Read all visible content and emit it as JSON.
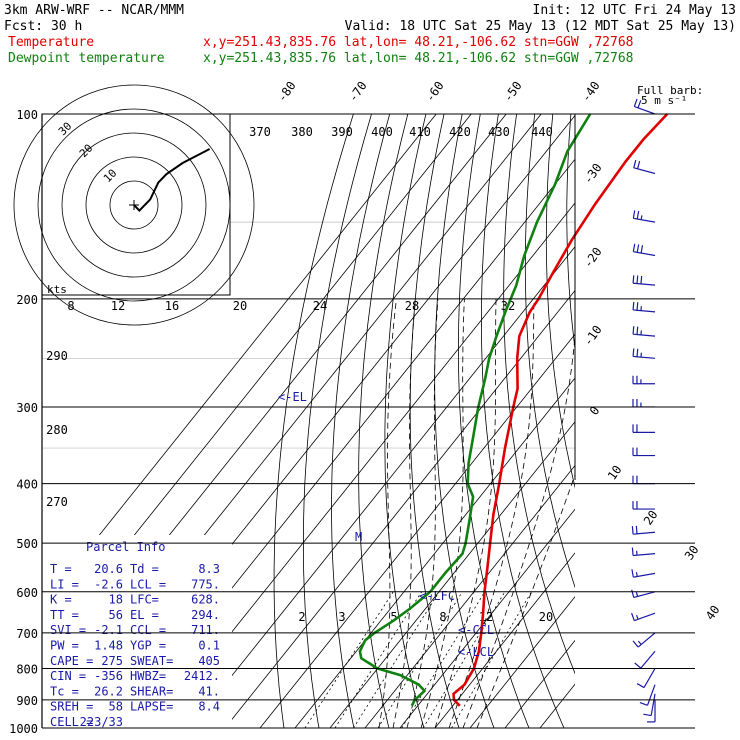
{
  "header": {
    "line1_left": "3km ARW-WRF -- NCAR/MMM",
    "line1_right": "Init: 12 UTC Fri 24 May 13",
    "line2_left": "Fcst:    30 h",
    "line2_right": "Valid: 18 UTC Sat 25 May 13 (12 MDT Sat 25 May 13)",
    "temp_label": "Temperature",
    "temp_loc": "x,y=251.43,835.76   lat,lon= 48.21,-106.62  stn=GGW ,72768",
    "dew_label": "Dewpoint temperature",
    "dew_loc": "x,y=251.43,835.76   lat,lon= 48.21,-106.62  stn=GGW ,72768"
  },
  "wind_legend": {
    "line1": "Full barb:",
    "line2": "5 m s⁻¹"
  },
  "hodograph": {
    "axis_label": "kts",
    "rings": [
      "10",
      "20",
      "30"
    ]
  },
  "annotations": {
    "el": "<-EL",
    "lfc": "<-LFC",
    "ccl": "<-CCL",
    "lcl": "<-LCL",
    "marker": "M"
  },
  "parcel_info": {
    "title": "Parcel Info",
    "rows": [
      [
        "T  =",
        "20.6",
        "Td =",
        "8.3"
      ],
      [
        "LI =",
        "-2.6",
        "LCL =",
        "775."
      ],
      [
        "K  =",
        "18",
        "LFC=",
        "628."
      ],
      [
        "TT =",
        "56",
        "EL =",
        "294."
      ],
      [
        "SVI =",
        "-2.1",
        "CCL =",
        "711."
      ],
      [
        "PW =",
        "1.48",
        "YGP =",
        "0.1"
      ],
      [
        "CAPE =",
        "275",
        "SWEAT=",
        "405"
      ],
      [
        "CIN =",
        "-356",
        "HWBZ=",
        "2412."
      ],
      [
        "Tc =",
        "26.2",
        "SHEAR=",
        "41."
      ],
      [
        "SREH =",
        "58",
        "LAPSE=",
        "8.4"
      ],
      [
        "CELL =",
        "223/33",
        "",
        ""
      ]
    ]
  },
  "colors": {
    "temperature": "#e00000",
    "dewpoint": "#108010",
    "annotation": "#1a1aa8",
    "background": "#ffffff"
  },
  "chart_data": {
    "type": "line",
    "yscale": "log",
    "ylabel": "",
    "xlabel": "",
    "y_ticks": [
      100,
      200,
      300,
      400,
      500,
      600,
      700,
      800,
      900,
      1000
    ],
    "isotherm_labels": [
      -80,
      -70,
      -60,
      -50,
      -40,
      -30,
      -20,
      -10,
      0,
      10,
      20,
      30,
      40
    ],
    "dry_adiabat_labels": [
      370,
      380,
      390,
      400,
      410,
      420,
      430,
      440
    ],
    "moist_adiabat_labels": [
      8,
      12,
      16,
      20,
      24,
      28,
      32
    ],
    "mixing_ratio_labels": [
      2,
      3,
      5,
      8,
      12,
      20
    ],
    "dry_adiabat_left_labels": [
      290,
      280,
      270
    ],
    "series": [
      {
        "name": "Temperature",
        "color": "#e00000",
        "points": [
          [
            920,
            22.0
          ],
          [
            900,
            19.0
          ],
          [
            880,
            17.5
          ],
          [
            850,
            18.5
          ],
          [
            800,
            17.5
          ],
          [
            750,
            15.0
          ],
          [
            700,
            11.5
          ],
          [
            650,
            7.5
          ],
          [
            600,
            3.0
          ],
          [
            550,
            -1.5
          ],
          [
            500,
            -6.5
          ],
          [
            450,
            -12.0
          ],
          [
            400,
            -17.5
          ],
          [
            350,
            -24.0
          ],
          [
            300,
            -31.0
          ],
          [
            280,
            -34.0
          ],
          [
            250,
            -41.0
          ],
          [
            230,
            -45.5
          ],
          [
            210,
            -48.0
          ],
          [
            200,
            -48.5
          ],
          [
            180,
            -50.5
          ],
          [
            160,
            -52.5
          ],
          [
            140,
            -54.0
          ],
          [
            120,
            -55.0
          ],
          [
            110,
            -55.0
          ],
          [
            100,
            -54.0
          ]
        ]
      },
      {
        "name": "Dewpoint temperature",
        "color": "#108010",
        "points": [
          [
            920,
            8.3
          ],
          [
            900,
            7.8
          ],
          [
            870,
            8.5
          ],
          [
            850,
            5.5
          ],
          [
            820,
            -2.0
          ],
          [
            800,
            -10.0
          ],
          [
            770,
            -17.0
          ],
          [
            750,
            -19.0
          ],
          [
            720,
            -20.0
          ],
          [
            700,
            -19.0
          ],
          [
            670,
            -16.5
          ],
          [
            640,
            -14.5
          ],
          [
            600,
            -12.5
          ],
          [
            560,
            -12.5
          ],
          [
            520,
            -12.0
          ],
          [
            500,
            -13.5
          ],
          [
            460,
            -17.5
          ],
          [
            420,
            -22.0
          ],
          [
            400,
            -26.5
          ],
          [
            370,
            -31.0
          ],
          [
            340,
            -35.0
          ],
          [
            300,
            -41.0
          ],
          [
            270,
            -45.5
          ],
          [
            250,
            -49.0
          ],
          [
            230,
            -52.0
          ],
          [
            210,
            -55.0
          ],
          [
            190,
            -58.0
          ],
          [
            170,
            -62.5
          ],
          [
            150,
            -66.5
          ],
          [
            130,
            -70.0
          ],
          [
            115,
            -74.0
          ],
          [
            100,
            -76.0
          ]
        ]
      }
    ],
    "wind_barbs": [
      {
        "p": 100,
        "dir": 290,
        "spd": 20
      },
      {
        "p": 125,
        "dir": 285,
        "spd": 20
      },
      {
        "p": 150,
        "dir": 280,
        "spd": 25
      },
      {
        "p": 170,
        "dir": 280,
        "spd": 30
      },
      {
        "p": 190,
        "dir": 275,
        "spd": 30
      },
      {
        "p": 210,
        "dir": 275,
        "spd": 25
      },
      {
        "p": 230,
        "dir": 275,
        "spd": 25
      },
      {
        "p": 250,
        "dir": 275,
        "spd": 25
      },
      {
        "p": 275,
        "dir": 270,
        "spd": 25
      },
      {
        "p": 300,
        "dir": 270,
        "spd": 25
      },
      {
        "p": 330,
        "dir": 270,
        "spd": 20
      },
      {
        "p": 360,
        "dir": 270,
        "spd": 20
      },
      {
        "p": 400,
        "dir": 270,
        "spd": 20
      },
      {
        "p": 440,
        "dir": 270,
        "spd": 20
      },
      {
        "p": 480,
        "dir": 265,
        "spd": 20
      },
      {
        "p": 520,
        "dir": 265,
        "spd": 15
      },
      {
        "p": 560,
        "dir": 260,
        "spd": 15
      },
      {
        "p": 600,
        "dir": 255,
        "spd": 15
      },
      {
        "p": 650,
        "dir": 250,
        "spd": 15
      },
      {
        "p": 700,
        "dir": 230,
        "spd": 15
      },
      {
        "p": 750,
        "dir": 220,
        "spd": 10
      },
      {
        "p": 800,
        "dir": 210,
        "spd": 10
      },
      {
        "p": 850,
        "dir": 200,
        "spd": 10
      },
      {
        "p": 880,
        "dir": 190,
        "spd": 10
      },
      {
        "p": 900,
        "dir": 180,
        "spd": 10
      }
    ],
    "hodograph_trace": [
      [
        0,
        0
      ],
      [
        2,
        -2
      ],
      [
        6,
        2
      ],
      [
        9,
        8
      ],
      [
        12,
        11
      ],
      [
        18,
        15
      ],
      [
        24,
        18
      ],
      [
        28,
        20
      ]
    ]
  }
}
